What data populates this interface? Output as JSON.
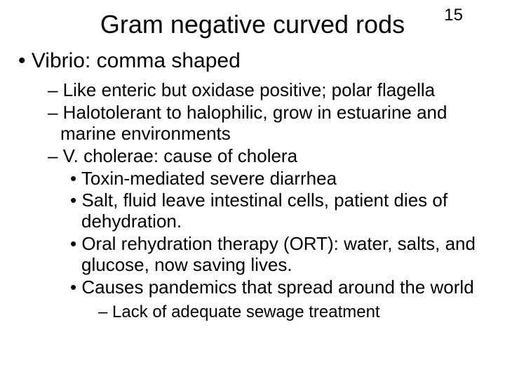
{
  "pageNumber": "15",
  "title": "Gram negative curved rods",
  "bullet1": "• Vibrio: comma shaped",
  "sub1": "– Like enteric but oxidase positive; polar flagella",
  "sub2": "– Halotolerant to halophilic, grow in estuarine and marine environments",
  "sub3": "– V. cholerae: cause of cholera",
  "subsub1": "• Toxin-mediated severe diarrhea",
  "subsub2": "• Salt, fluid leave intestinal cells, patient dies of dehydration.",
  "subsub3": "• Oral rehydration therapy (ORT): water, salts, and glucose, now saving lives.",
  "subsub4": "• Causes pandemics that spread around the world",
  "subsubsub1": "– Lack of adequate sewage treatment",
  "style": {
    "background_color": "#ffffff",
    "text_color": "#000000",
    "font_family": "Arial",
    "title_fontsize": 36,
    "level1_fontsize": 30,
    "level2_fontsize": 26,
    "level3_fontsize": 26,
    "level4_fontsize": 24,
    "page_number_fontsize": 24
  }
}
